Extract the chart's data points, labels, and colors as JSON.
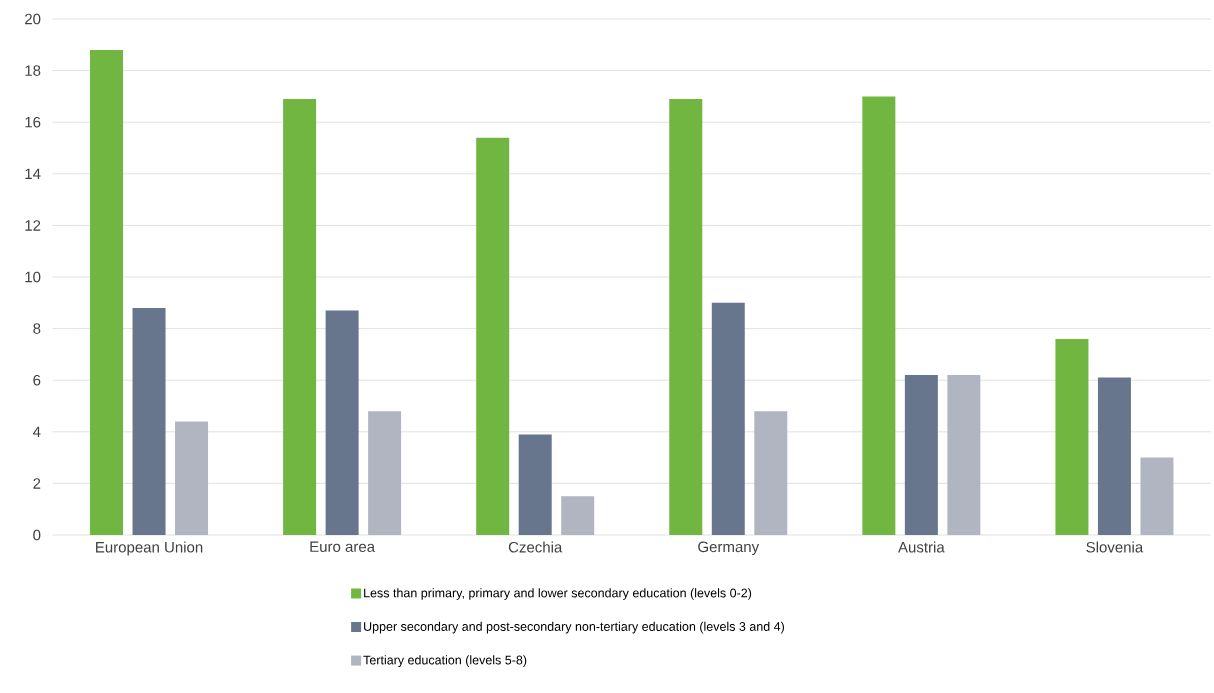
{
  "chart_data": {
    "type": "bar",
    "categories": [
      "European Union",
      "Euro area",
      "Czechia",
      "Germany",
      "Austria",
      "Slovenia"
    ],
    "series": [
      {
        "name": "Less than primary, primary and lower secondary education (levels 0-2)",
        "color": "#70b640",
        "values": [
          18.8,
          16.9,
          15.4,
          16.9,
          17.0,
          7.6
        ]
      },
      {
        "name": "Upper secondary and post-secondary non-tertiary education (levels 3 and 4)",
        "color": "#68768d",
        "values": [
          8.8,
          8.7,
          3.9,
          9.0,
          6.2,
          6.1
        ]
      },
      {
        "name": "Tertiary education (levels 5-8)",
        "color": "#b1b5c2",
        "values": [
          4.4,
          4.8,
          1.5,
          4.8,
          6.2,
          3.0
        ]
      }
    ],
    "ylim": [
      0,
      20
    ],
    "yticks": [
      0,
      2,
      4,
      6,
      8,
      10,
      12,
      14,
      16,
      18,
      20
    ],
    "grid": "y",
    "legend": "bottom"
  }
}
